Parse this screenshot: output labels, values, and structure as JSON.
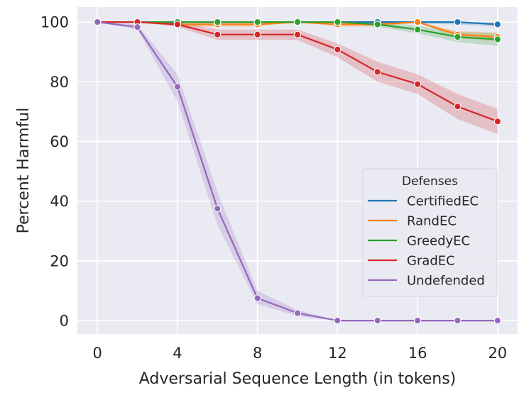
{
  "chart_data": {
    "type": "line",
    "title": "",
    "xlabel": "Adversarial Sequence Length (in tokens)",
    "ylabel": "Percent Harmful",
    "x": [
      0,
      2,
      4,
      6,
      8,
      10,
      12,
      14,
      16,
      18,
      20
    ],
    "xticks": [
      0,
      4,
      8,
      12,
      16,
      20
    ],
    "yticks": [
      0,
      20,
      40,
      60,
      80,
      100
    ],
    "xlim": [
      -1,
      21
    ],
    "ylim": [
      -4.5,
      105
    ],
    "grid": true,
    "background": "#eaeaf2",
    "legend": {
      "title": "Defenses",
      "placement": "lower-right"
    },
    "series": [
      {
        "name": "CertifiedEC",
        "color": "#1f77b4",
        "values": [
          100,
          100,
          100,
          100,
          100,
          100,
          100,
          100,
          100,
          100,
          99.2
        ],
        "lower": [
          100,
          100,
          100,
          100,
          100,
          100,
          100,
          99.5,
          99.5,
          99.2,
          98.4
        ],
        "upper": [
          100,
          100,
          100,
          100,
          100,
          100,
          100,
          100,
          100,
          100,
          100
        ]
      },
      {
        "name": "RandEC",
        "color": "#ff7f0e",
        "values": [
          100,
          100,
          99.2,
          99.2,
          99.2,
          100,
          99.2,
          99.2,
          100,
          95.8,
          95
        ],
        "lower": [
          100,
          100,
          98.4,
          98.4,
          98.4,
          100,
          98.4,
          98.4,
          100,
          94.6,
          93.5
        ],
        "upper": [
          100,
          100,
          100,
          100,
          100,
          100,
          100,
          100,
          100,
          97,
          96.5
        ]
      },
      {
        "name": "GreedyEC",
        "color": "#2ca02c",
        "values": [
          100,
          100,
          100,
          100,
          100,
          100,
          100,
          99.2,
          97.5,
          95,
          94.2
        ],
        "lower": [
          100,
          100,
          100,
          100,
          100,
          100,
          100,
          98.4,
          96.2,
          93.3,
          92
        ],
        "upper": [
          100,
          100,
          100,
          100,
          100,
          100,
          100,
          100,
          98.8,
          96.7,
          96.2
        ]
      },
      {
        "name": "GradEC",
        "color": "#d62728",
        "values": [
          100,
          100,
          99.2,
          95.8,
          95.8,
          95.8,
          90.8,
          83.3,
          79.2,
          71.7,
          66.7
        ],
        "lower": [
          100,
          100,
          98.4,
          94,
          94,
          94,
          88.2,
          80,
          75.9,
          67.5,
          62.5
        ],
        "upper": [
          100,
          100,
          100,
          97.5,
          97.5,
          97.5,
          92.8,
          86.7,
          82.5,
          75.9,
          70.9
        ]
      },
      {
        "name": "Undefended",
        "color": "#9467bd",
        "values": [
          100,
          98.3,
          78.3,
          37.5,
          7.5,
          2.5,
          0,
          0,
          0,
          0,
          0
        ],
        "lower": [
          100,
          97.5,
          73.5,
          32,
          5.5,
          1.5,
          0,
          0,
          0,
          0,
          0
        ],
        "upper": [
          100,
          99.2,
          82.5,
          43,
          10,
          3.5,
          0,
          0,
          0,
          0,
          0
        ]
      }
    ]
  }
}
